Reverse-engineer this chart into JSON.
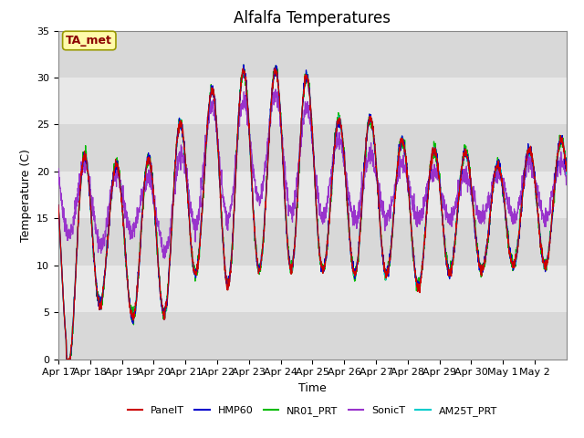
{
  "title": "Alfalfa Temperatures",
  "xlabel": "Time",
  "ylabel": "Temperature (C)",
  "ylim": [
    0,
    35
  ],
  "annotation": "TA_met",
  "annotation_color": "#8B0000",
  "annotation_bg": "#FFFAAA",
  "legend": [
    "PanelT",
    "HMP60",
    "NR01_PRT",
    "SonicT",
    "AM25T_PRT"
  ],
  "line_colors": [
    "#CC0000",
    "#0000CC",
    "#00BB00",
    "#9933CC",
    "#00CCCC"
  ],
  "tick_labels": [
    "Apr 17",
    "Apr 18",
    "Apr 19",
    "Apr 20",
    "Apr 21",
    "Apr 22",
    "Apr 23",
    "Apr 24",
    "Apr 25",
    "Apr 26",
    "Apr 27",
    "Apr 28",
    "Apr 29",
    "Apr 30",
    "May 1",
    "May 2"
  ],
  "bg_band1": "#DCDCDC",
  "bg_band2": "#C8C8C8",
  "title_fontsize": 12,
  "axis_label_fontsize": 9,
  "tick_fontsize": 8,
  "n_days": 16,
  "pts_per_day": 144,
  "day_peaks": [
    22,
    21,
    20,
    24,
    27.5,
    31,
    30,
    32.5,
    25,
    26.5,
    24,
    22,
    23,
    20,
    22,
    23
  ],
  "day_mins": [
    0.5,
    7,
    4,
    5,
    10,
    7.5,
    10,
    9.5,
    9.5,
    9,
    9,
    7.5,
    9.5,
    9.5,
    10,
    10
  ],
  "sonic_mins": [
    13,
    12,
    14,
    11,
    15,
    15,
    17.5,
    15,
    15,
    15,
    15,
    15,
    15,
    15,
    15,
    15
  ],
  "sonic_peaks": [
    21,
    20,
    19,
    19,
    27,
    27,
    28.5,
    28,
    24,
    22,
    21,
    20,
    20,
    19,
    21,
    21
  ]
}
